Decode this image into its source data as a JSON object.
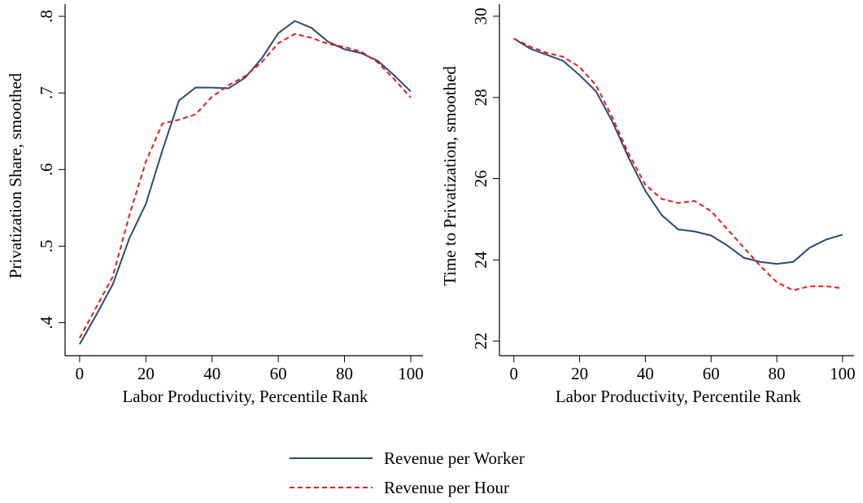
{
  "chart_data": [
    {
      "type": "line",
      "xlabel": "Labor Productivity, Percentile Rank",
      "ylabel": "Privatization Share, smoothed",
      "x": [
        0,
        5,
        10,
        15,
        20,
        25,
        30,
        35,
        40,
        45,
        50,
        55,
        60,
        65,
        70,
        75,
        80,
        85,
        90,
        95,
        100
      ],
      "series": [
        {
          "name": "Revenue per Worker",
          "color": "#2c4a6e",
          "dash": false,
          "values": [
            0.372,
            0.41,
            0.45,
            0.51,
            0.555,
            0.625,
            0.69,
            0.707,
            0.707,
            0.706,
            0.72,
            0.745,
            0.778,
            0.794,
            0.785,
            0.767,
            0.757,
            0.752,
            0.742,
            0.723,
            0.702
          ]
        },
        {
          "name": "Revenue per Hour",
          "color": "#e8191d",
          "dash": true,
          "values": [
            0.38,
            0.42,
            0.46,
            0.54,
            0.61,
            0.66,
            0.665,
            0.672,
            0.695,
            0.71,
            0.722,
            0.74,
            0.765,
            0.777,
            0.772,
            0.764,
            0.76,
            0.754,
            0.74,
            0.718,
            0.694
          ]
        }
      ],
      "xlim": [
        -4.4,
        103.7
      ],
      "xticks": [
        0,
        20,
        40,
        60,
        80,
        100
      ],
      "ylim": [
        0.357,
        0.816
      ],
      "yticks": [
        {
          "value": 0.4,
          "label": ".4"
        },
        {
          "value": 0.5,
          "label": ".5"
        },
        {
          "value": 0.6,
          "label": ".6"
        },
        {
          "value": 0.7,
          "label": ".7"
        },
        {
          "value": 0.8,
          "label": ".8"
        }
      ]
    },
    {
      "type": "line",
      "xlabel": "Labor Productivity, Percentile Rank",
      "ylabel": "Time to Privatization, smoothed",
      "x": [
        0,
        5,
        10,
        15,
        20,
        25,
        30,
        35,
        40,
        45,
        50,
        55,
        60,
        65,
        70,
        75,
        80,
        85,
        90,
        95,
        100
      ],
      "series": [
        {
          "name": "Revenue per Worker",
          "color": "#2c4a6e",
          "dash": false,
          "values": [
            29.45,
            29.2,
            29.05,
            28.9,
            28.55,
            28.15,
            27.4,
            26.5,
            25.7,
            25.1,
            24.75,
            24.7,
            24.6,
            24.35,
            24.05,
            23.95,
            23.9,
            23.95,
            24.3,
            24.5,
            24.62
          ]
        },
        {
          "name": "Revenue per Hour",
          "color": "#e8191d",
          "dash": true,
          "values": [
            29.45,
            29.25,
            29.1,
            29.0,
            28.75,
            28.3,
            27.5,
            26.6,
            25.85,
            25.5,
            25.4,
            25.45,
            25.2,
            24.75,
            24.3,
            23.85,
            23.45,
            23.25,
            23.35,
            23.35,
            23.3
          ]
        }
      ],
      "xlim": [
        -4.4,
        103.5
      ],
      "xticks": [
        0,
        20,
        40,
        60,
        80,
        100
      ],
      "ylim": [
        21.64,
        30.3
      ],
      "yticks": [
        22,
        24,
        26,
        28,
        30
      ]
    }
  ]
}
